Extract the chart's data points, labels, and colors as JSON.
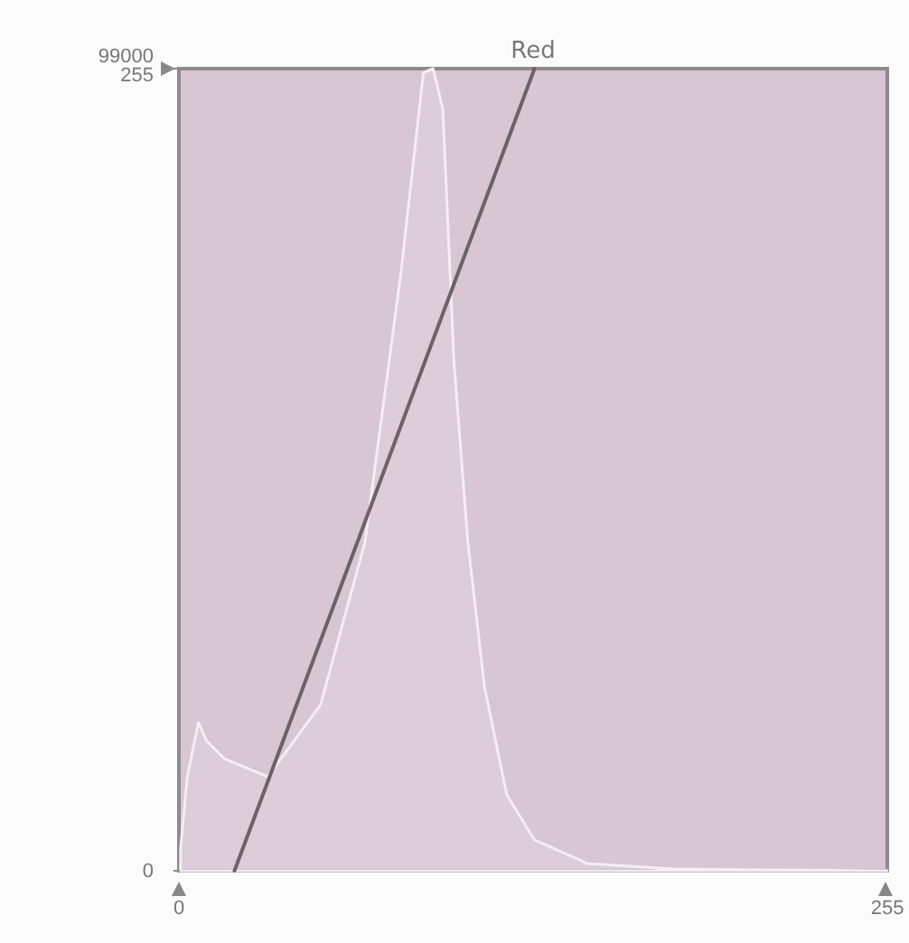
{
  "chart_data": {
    "type": "line",
    "title": "Red",
    "xlim": [
      0,
      255
    ],
    "xticks": [
      0,
      255
    ],
    "ylim": [
      0,
      99000
    ],
    "yticks": [
      {
        "value": 0,
        "label": null
      },
      99000
    ],
    "y2lim": [
      0,
      255
    ],
    "y2ticks": [
      0,
      255
    ],
    "grid": false,
    "series": [
      {
        "type": "area",
        "color": "#f4eef4",
        "x": [
          0.6,
          3,
          7,
          10,
          16.5,
          32,
          51,
          67,
          80,
          88,
          91.5,
          95,
          99,
          104,
          110,
          118,
          128,
          147,
          179,
          255
        ],
        "values": [
          2700,
          11600,
          18300,
          16000,
          13800,
          11600,
          20500,
          40600,
          74000,
          98500,
          99000,
          94000,
          62900,
          40600,
          22700,
          9400,
          3800,
          900,
          200,
          0
        ]
      },
      {
        "color": "#6e6168",
        "axis": "y2",
        "x": [
          20,
          128
        ],
        "values": [
          0,
          255
        ]
      }
    ]
  }
}
